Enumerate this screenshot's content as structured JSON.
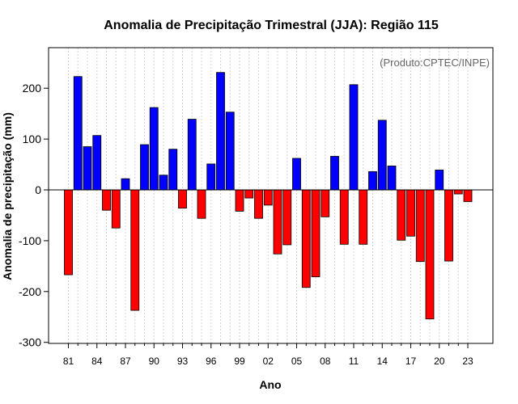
{
  "chart_data": {
    "type": "bar",
    "title": "Anomalia de Precipitação Trimestral (JJA): Região 115",
    "xlabel": "Ano",
    "ylabel": "Anomalia de precipitação (mm)",
    "credit": "(Produto:CPTEC/INPE)",
    "ylim": [
      -305,
      280
    ],
    "yticks": [
      -300,
      -200,
      -100,
      0,
      100,
      200
    ],
    "xtick_labels": [
      "81",
      "84",
      "87",
      "90",
      "93",
      "96",
      "99",
      "02",
      "05",
      "08",
      "11",
      "14",
      "17",
      "20",
      "23"
    ],
    "categories": [
      "1981",
      "1982",
      "1983",
      "1984",
      "1985",
      "1986",
      "1987",
      "1988",
      "1989",
      "1990",
      "1991",
      "1992",
      "1993",
      "1994",
      "1995",
      "1996",
      "1997",
      "1998",
      "1999",
      "2000",
      "2001",
      "2002",
      "2003",
      "2004",
      "2005",
      "2006",
      "2007",
      "2008",
      "2009",
      "2010",
      "2011",
      "2012",
      "2013",
      "2014",
      "2015",
      "2016",
      "2017",
      "2018",
      "2019",
      "2020",
      "2021",
      "2022",
      "2023"
    ],
    "values": [
      -167,
      223,
      85,
      107,
      -40,
      -75,
      22,
      -237,
      89,
      162,
      29,
      80,
      -36,
      139,
      -56,
      51,
      231,
      153,
      -42,
      -16,
      -56,
      -30,
      -126,
      -108,
      62,
      -192,
      -171,
      -53,
      66,
      -107,
      207,
      -107,
      36,
      137,
      47,
      -99,
      -91,
      -141,
      -254,
      39,
      -140,
      -8,
      -23
    ],
    "colors": {
      "positive": "#0000ff",
      "negative": "#ff0000",
      "edge": "#000000",
      "grid": "#d3d3d3"
    }
  }
}
